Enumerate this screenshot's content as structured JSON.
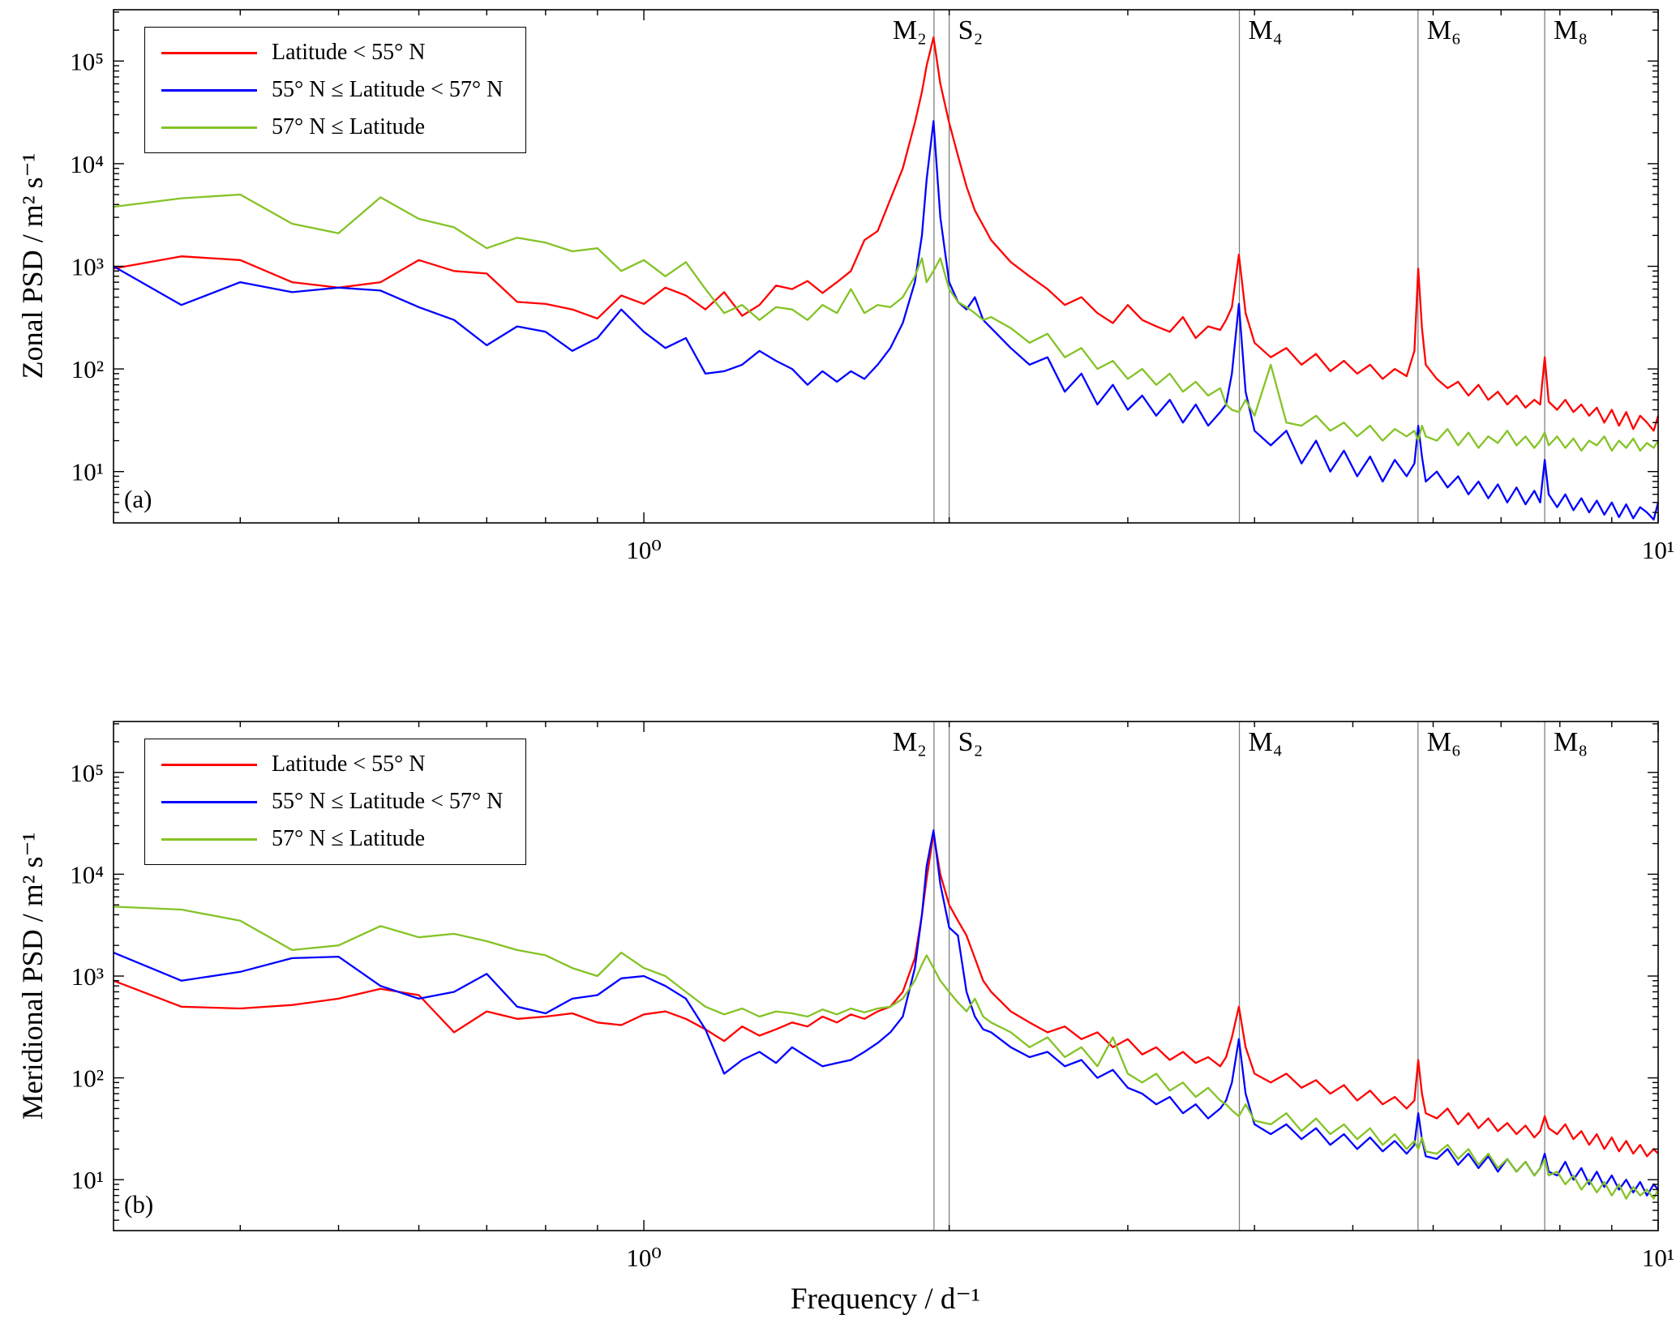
{
  "figure": {
    "xlim": [
      0.3,
      10
    ],
    "colors": {
      "red": "#ff0000",
      "blue": "#0000ff",
      "green": "#84c326",
      "gridline": "#808080",
      "axis": "#000000"
    },
    "legend": [
      {
        "label": "Latitude < 55° N",
        "color_key": "red"
      },
      {
        "label": "55° N ≤ Latitude < 57° N",
        "color_key": "blue"
      },
      {
        "label": "57° N ≤ Latitude",
        "color_key": "green"
      }
    ],
    "tidal_lines": [
      {
        "label": "M₂",
        "freq": 1.9323,
        "label_side": "left"
      },
      {
        "label": "S₂",
        "freq": 2.0,
        "label_side": "right"
      },
      {
        "label": "M₄",
        "freq": 3.8645,
        "label_side": "right"
      },
      {
        "label": "M₆",
        "freq": 5.7968,
        "label_side": "right"
      },
      {
        "label": "M₈",
        "freq": 7.7291,
        "label_side": "right"
      }
    ],
    "x_tick_labels": [
      {
        "value": 1,
        "label": "10⁰"
      },
      {
        "value": 10,
        "label": "10¹"
      }
    ],
    "y_tick_labels": [
      {
        "value": 10,
        "label": "10¹"
      },
      {
        "value": 100,
        "label": "10²"
      },
      {
        "value": 1000,
        "label": "10³"
      },
      {
        "value": 10000,
        "label": "10⁴"
      },
      {
        "value": 100000,
        "label": "10⁵"
      }
    ],
    "frequencies": [
      0.3,
      0.35,
      0.4,
      0.45,
      0.5,
      0.55,
      0.6,
      0.65,
      0.7,
      0.75,
      0.8,
      0.85,
      0.9,
      0.95,
      1.0,
      1.05,
      1.1,
      1.15,
      1.2,
      1.25,
      1.3,
      1.35,
      1.4,
      1.45,
      1.5,
      1.55,
      1.6,
      1.65,
      1.7,
      1.75,
      1.8,
      1.85,
      1.88,
      1.9,
      1.93,
      1.96,
      2.0,
      2.04,
      2.08,
      2.12,
      2.16,
      2.2,
      2.3,
      2.4,
      2.5,
      2.6,
      2.7,
      2.8,
      2.9,
      3.0,
      3.1,
      3.2,
      3.3,
      3.4,
      3.5,
      3.6,
      3.7,
      3.75,
      3.8,
      3.86,
      3.92,
      4.0,
      4.15,
      4.3,
      4.45,
      4.6,
      4.75,
      4.9,
      5.05,
      5.2,
      5.35,
      5.5,
      5.65,
      5.75,
      5.8,
      5.85,
      5.9,
      6.05,
      6.2,
      6.35,
      6.5,
      6.65,
      6.8,
      6.95,
      7.1,
      7.25,
      7.4,
      7.55,
      7.65,
      7.73,
      7.8,
      7.95,
      8.1,
      8.25,
      8.4,
      8.55,
      8.7,
      8.85,
      9.0,
      9.15,
      9.3,
      9.45,
      9.6,
      9.75,
      9.9,
      10.0
    ]
  },
  "chart_data": [
    {
      "type": "line",
      "xscale": "log",
      "yscale": "log",
      "panel_label": "(a)",
      "ylabel": "Zonal PSD / m² s⁻¹",
      "xlabel": "",
      "ylim": [
        3.162,
        316228
      ],
      "legend_position": "top-left",
      "grid": "tidal vertical lines only",
      "series": [
        {
          "name": "Latitude < 55° N",
          "color_key": "red",
          "values": [
            950,
            1250,
            1150,
            700,
            620,
            700,
            1150,
            900,
            850,
            450,
            430,
            380,
            310,
            520,
            430,
            620,
            520,
            380,
            560,
            330,
            420,
            650,
            600,
            720,
            550,
            700,
            900,
            1800,
            2200,
            4500,
            9000,
            25000,
            50000,
            90000,
            170000,
            60000,
            25000,
            12000,
            6000,
            3500,
            2500,
            1800,
            1100,
            800,
            600,
            420,
            500,
            350,
            280,
            420,
            300,
            260,
            230,
            320,
            200,
            260,
            240,
            300,
            400,
            1300,
            350,
            180,
            130,
            160,
            110,
            140,
            95,
            120,
            90,
            110,
            80,
            100,
            85,
            150,
            950,
            250,
            110,
            80,
            65,
            75,
            55,
            70,
            50,
            60,
            45,
            55,
            42,
            50,
            45,
            130,
            48,
            40,
            50,
            38,
            45,
            35,
            42,
            30,
            40,
            28,
            38,
            26,
            35,
            30,
            25,
            35
          ]
        },
        {
          "name": "55° N ≤ Latitude < 57° N",
          "color_key": "blue",
          "values": [
            1000,
            420,
            700,
            560,
            620,
            580,
            400,
            300,
            170,
            260,
            230,
            150,
            200,
            380,
            230,
            160,
            200,
            90,
            95,
            110,
            150,
            120,
            100,
            70,
            95,
            75,
            95,
            80,
            110,
            160,
            280,
            700,
            2000,
            7000,
            26000,
            3000,
            700,
            450,
            380,
            500,
            300,
            250,
            160,
            110,
            130,
            60,
            90,
            45,
            70,
            40,
            55,
            35,
            50,
            30,
            45,
            28,
            38,
            45,
            90,
            430,
            60,
            25,
            18,
            25,
            12,
            20,
            10,
            16,
            9,
            14,
            8,
            13,
            9,
            12,
            28,
            14,
            8,
            10,
            7,
            9,
            6,
            8,
            5.5,
            7.5,
            5,
            7,
            4.8,
            6.5,
            5,
            13,
            6,
            4.5,
            6,
            4.2,
            5.5,
            4,
            5.2,
            3.8,
            5,
            3.6,
            4.8,
            3.5,
            4.5,
            4,
            3.4,
            5
          ]
        },
        {
          "name": "57° N ≤ Latitude",
          "color_key": "green",
          "values": [
            3800,
            4600,
            5000,
            2600,
            2100,
            4700,
            2900,
            2400,
            1500,
            1900,
            1700,
            1400,
            1500,
            900,
            1150,
            800,
            1100,
            600,
            350,
            420,
            300,
            400,
            380,
            300,
            420,
            350,
            600,
            350,
            420,
            400,
            500,
            800,
            1200,
            700,
            900,
            1200,
            600,
            450,
            400,
            350,
            300,
            320,
            250,
            180,
            220,
            130,
            160,
            100,
            120,
            80,
            100,
            70,
            90,
            60,
            75,
            55,
            65,
            45,
            40,
            38,
            50,
            35,
            110,
            30,
            28,
            35,
            25,
            30,
            22,
            28,
            20,
            26,
            22,
            25,
            20,
            28,
            22,
            20,
            26,
            18,
            24,
            17,
            22,
            19,
            25,
            18,
            22,
            17,
            20,
            24,
            18,
            22,
            17,
            21,
            16,
            20,
            18,
            22,
            16,
            20,
            17,
            21,
            16,
            19,
            17,
            20
          ]
        }
      ]
    },
    {
      "type": "line",
      "xscale": "log",
      "yscale": "log",
      "panel_label": "(b)",
      "ylabel": "Meridional PSD / m² s⁻¹",
      "xlabel": "Frequency / d⁻¹",
      "ylim": [
        3.162,
        316228
      ],
      "legend_position": "top-left",
      "grid": "tidal vertical lines only",
      "series": [
        {
          "name": "Latitude < 55° N",
          "color_key": "red",
          "values": [
            900,
            500,
            480,
            520,
            600,
            750,
            650,
            280,
            450,
            380,
            400,
            430,
            350,
            330,
            420,
            450,
            380,
            300,
            230,
            320,
            260,
            300,
            350,
            320,
            400,
            350,
            420,
            380,
            450,
            500,
            700,
            1500,
            4000,
            9000,
            25000,
            10000,
            5000,
            3500,
            2500,
            1500,
            900,
            700,
            450,
            350,
            280,
            320,
            240,
            280,
            200,
            240,
            170,
            200,
            150,
            180,
            140,
            160,
            130,
            160,
            250,
            500,
            200,
            110,
            90,
            110,
            80,
            95,
            70,
            85,
            60,
            75,
            55,
            65,
            50,
            60,
            150,
            70,
            45,
            40,
            50,
            35,
            45,
            32,
            40,
            30,
            36,
            28,
            34,
            26,
            30,
            42,
            32,
            28,
            35,
            25,
            30,
            22,
            28,
            20,
            26,
            19,
            24,
            18,
            22,
            17,
            20,
            18
          ]
        },
        {
          "name": "55° N ≤ Latitude < 57° N",
          "color_key": "blue",
          "values": [
            1700,
            900,
            1100,
            1500,
            1550,
            800,
            600,
            700,
            1050,
            500,
            430,
            600,
            650,
            950,
            1000,
            800,
            600,
            300,
            110,
            150,
            180,
            140,
            200,
            160,
            130,
            140,
            150,
            180,
            220,
            280,
            400,
            1200,
            4000,
            12000,
            27000,
            8000,
            3000,
            2500,
            700,
            400,
            300,
            280,
            200,
            160,
            180,
            130,
            150,
            100,
            120,
            80,
            70,
            55,
            65,
            45,
            55,
            40,
            50,
            60,
            90,
            240,
            70,
            35,
            28,
            35,
            25,
            32,
            22,
            28,
            20,
            26,
            19,
            24,
            18,
            22,
            45,
            25,
            17,
            16,
            20,
            14,
            18,
            13,
            17,
            12,
            16,
            12,
            15,
            11,
            13,
            18,
            12,
            11,
            15,
            10,
            13,
            9,
            12,
            8.5,
            11,
            8,
            10,
            7.5,
            9.5,
            7,
            9,
            8
          ]
        },
        {
          "name": "57° N ≤ Latitude",
          "color_key": "green",
          "values": [
            4800,
            4500,
            3500,
            1800,
            2000,
            3100,
            2400,
            2600,
            2200,
            1800,
            1600,
            1200,
            1000,
            1700,
            1200,
            1000,
            700,
            500,
            420,
            480,
            400,
            450,
            430,
            400,
            470,
            420,
            480,
            440,
            480,
            500,
            600,
            900,
            1300,
            1600,
            1200,
            900,
            700,
            550,
            450,
            600,
            400,
            350,
            280,
            200,
            250,
            160,
            200,
            130,
            250,
            110,
            90,
            110,
            75,
            90,
            65,
            80,
            60,
            55,
            48,
            42,
            55,
            38,
            35,
            45,
            30,
            40,
            28,
            35,
            25,
            32,
            22,
            28,
            20,
            24,
            20,
            26,
            19,
            18,
            22,
            16,
            20,
            14,
            18,
            13,
            16,
            12,
            15,
            11,
            13,
            16,
            11,
            12,
            9,
            11,
            8,
            10,
            7.5,
            9.5,
            7,
            9,
            6.5,
            8.5,
            7,
            8,
            6.5,
            8
          ]
        }
      ]
    }
  ]
}
